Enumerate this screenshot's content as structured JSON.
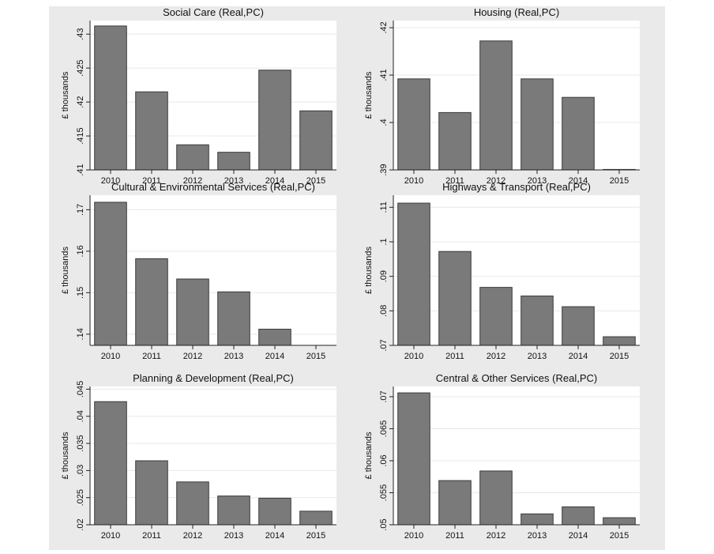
{
  "colors": {
    "panel_bg": "#eaeaea",
    "plot_bg": "#ffffff",
    "bar_fill": "#7a7a7a",
    "bar_stroke": "#3a3a3a",
    "grid": "#e8e8e8",
    "text": "#111111"
  },
  "chart_data": [
    {
      "type": "bar",
      "title": "Social Care (Real,PC)",
      "ylabel": "£ thousands",
      "xlabel": "",
      "categories": [
        "2010",
        "2011",
        "2012",
        "2013",
        "2014",
        "2015"
      ],
      "values": [
        0.4312,
        0.4215,
        0.4137,
        0.4126,
        0.4247,
        0.4187
      ],
      "ylim": [
        0.41,
        0.432
      ],
      "yticks": [
        0.41,
        0.415,
        0.42,
        0.425,
        0.43
      ],
      "ytick_labels": [
        ".41",
        ".415",
        ".42",
        ".425",
        ".43"
      ],
      "grid": true
    },
    {
      "type": "bar",
      "title": "Housing (Real,PC)",
      "ylabel": "£ thousands",
      "xlabel": "",
      "categories": [
        "2010",
        "2011",
        "2012",
        "2013",
        "2014",
        "2015"
      ],
      "values": [
        0.4092,
        0.4021,
        0.4172,
        0.4092,
        0.4053,
        0.3901
      ],
      "ylim": [
        0.39,
        0.4215
      ],
      "yticks": [
        0.39,
        0.4,
        0.41,
        0.42
      ],
      "ytick_labels": [
        ".39",
        ".4",
        ".41",
        ".42"
      ],
      "grid": true
    },
    {
      "type": "bar",
      "title": "Cultural & Environmental Services (Real,PC)",
      "ylabel": "£ thousands",
      "xlabel": "",
      "categories": [
        "2010",
        "2011",
        "2012",
        "2013",
        "2014",
        "2015"
      ],
      "values": [
        0.1718,
        0.1582,
        0.1533,
        0.1502,
        0.1412,
        0.1372
      ],
      "ylim": [
        0.1373,
        0.1735
      ],
      "yticks": [
        0.14,
        0.15,
        0.16,
        0.17
      ],
      "ytick_labels": [
        ".14",
        ".15",
        ".16",
        ".17"
      ],
      "grid": true
    },
    {
      "type": "bar",
      "title": "Highways & Transport (Real,PC)",
      "ylabel": "£ thousands",
      "xlabel": "",
      "categories": [
        "2010",
        "2011",
        "2012",
        "2013",
        "2014",
        "2015"
      ],
      "values": [
        0.1112,
        0.0972,
        0.0868,
        0.0843,
        0.0812,
        0.0725
      ],
      "ylim": [
        0.07,
        0.1135
      ],
      "yticks": [
        0.07,
        0.08,
        0.09,
        0.1,
        0.11
      ],
      "ytick_labels": [
        ".07",
        ".08",
        ".09",
        ".1",
        ".11"
      ],
      "grid": true
    },
    {
      "type": "bar",
      "title": "Planning & Development (Real,PC)",
      "ylabel": "£ thousands",
      "xlabel": "",
      "categories": [
        "2010",
        "2011",
        "2012",
        "2013",
        "2014",
        "2015"
      ],
      "values": [
        0.0427,
        0.0318,
        0.0279,
        0.0253,
        0.0249,
        0.0225
      ],
      "ylim": [
        0.02,
        0.0455
      ],
      "yticks": [
        0.02,
        0.025,
        0.03,
        0.035,
        0.04,
        0.045
      ],
      "ytick_labels": [
        ".02",
        ".025",
        ".03",
        ".035",
        ".04",
        ".045"
      ],
      "grid": true
    },
    {
      "type": "bar",
      "title": "Central & Other Services (Real,PC)",
      "ylabel": "£ thousands",
      "xlabel": "",
      "categories": [
        "2010",
        "2011",
        "2012",
        "2013",
        "2014",
        "2015"
      ],
      "values": [
        0.0706,
        0.0569,
        0.0584,
        0.0517,
        0.0528,
        0.0511
      ],
      "ylim": [
        0.05,
        0.0716
      ],
      "yticks": [
        0.05,
        0.055,
        0.06,
        0.065,
        0.07
      ],
      "ytick_labels": [
        ".05",
        ".055",
        ".06",
        ".065",
        ".07"
      ],
      "grid": true
    }
  ]
}
